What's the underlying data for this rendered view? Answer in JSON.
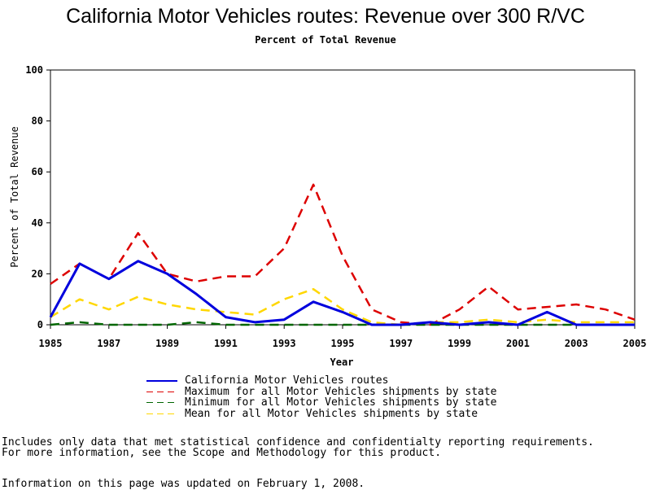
{
  "chart_data": {
    "type": "line",
    "title": "California Motor Vehicles routes: Revenue over 300 R/VC",
    "subtitle": "Percent of Total Revenue",
    "xlabel": "Year",
    "ylabel": "Percent of Total Revenue",
    "xlim": [
      1985,
      2005
    ],
    "ylim": [
      0,
      100
    ],
    "x_ticks": [
      1985,
      1987,
      1989,
      1991,
      1993,
      1995,
      1997,
      1999,
      2001,
      2003,
      2005
    ],
    "y_ticks": [
      0,
      20,
      40,
      60,
      80,
      100
    ],
    "grid": false,
    "legend_position": "bottom",
    "x": [
      1985,
      1986,
      1987,
      1988,
      1989,
      1990,
      1991,
      1992,
      1993,
      1994,
      1995,
      1996,
      1997,
      1998,
      1999,
      2000,
      2001,
      2002,
      2003,
      2004,
      2005
    ],
    "series": [
      {
        "name": "California Motor Vehicles routes",
        "color": "#0000dd",
        "dash": "solid",
        "values": [
          3,
          24,
          18,
          25,
          20,
          12,
          3,
          1,
          2,
          9,
          5,
          0,
          0,
          1,
          0,
          1,
          0,
          5,
          0,
          0,
          0
        ]
      },
      {
        "name": "Maximum for all Motor Vehicles shipments by state",
        "color": "#dd0000",
        "dash": "dashed",
        "values": [
          16,
          24,
          18,
          36,
          20,
          17,
          19,
          19,
          30,
          55,
          27,
          6,
          1,
          0,
          6,
          15,
          6,
          7,
          8,
          6,
          2
        ]
      },
      {
        "name": "Minimum for all Motor Vehicles shipments by state",
        "color": "#006600",
        "dash": "dashed",
        "values": [
          0,
          1,
          0,
          0,
          0,
          1,
          0,
          0,
          0,
          0,
          0,
          0,
          0,
          0,
          0,
          0,
          0,
          0,
          0,
          0,
          0
        ]
      },
      {
        "name": "Mean for all Motor Vehicles shipments by state",
        "color": "#ffd700",
        "dash": "dashed",
        "values": [
          3,
          10,
          6,
          11,
          8,
          6,
          5,
          4,
          10,
          14,
          6,
          1,
          0,
          1,
          1,
          2,
          1,
          2,
          1,
          1,
          1
        ]
      }
    ]
  },
  "notes": {
    "line1": "Includes only data that met statistical confidence and confidentialty reporting requirements.",
    "line2": "For more information, see the Scope and Methodology for this product.",
    "updated": "Information on this page was updated on February 1, 2008."
  }
}
